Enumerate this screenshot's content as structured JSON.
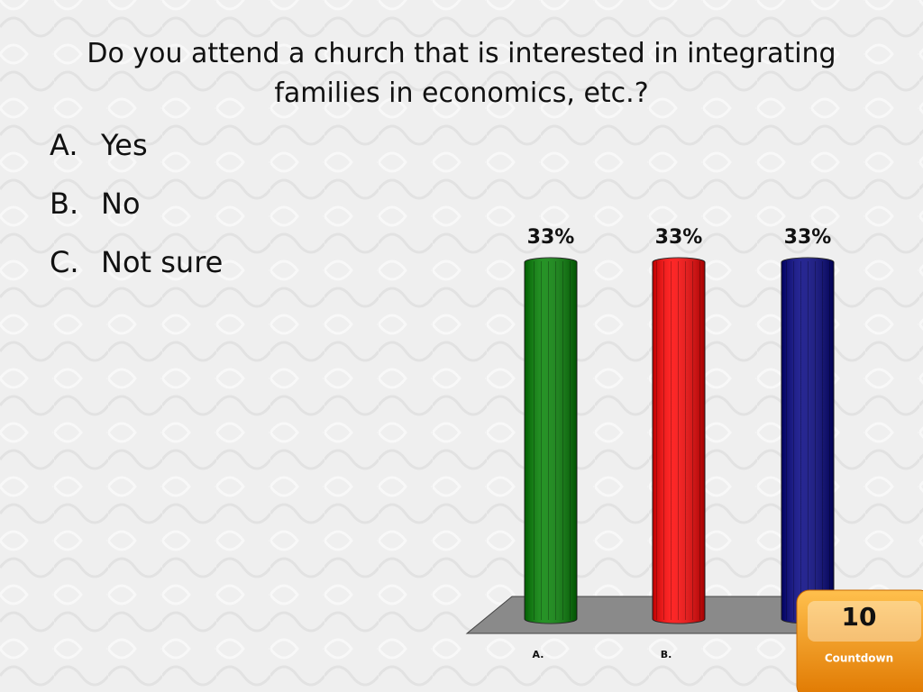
{
  "title": "Do you attend a church that is interested in integrating families in economics, etc.?",
  "options": [
    {
      "letter": "A.",
      "text": "Yes"
    },
    {
      "letter": "B.",
      "text": "No"
    },
    {
      "letter": "C.",
      "text": "Not sure"
    }
  ],
  "chart_data": {
    "type": "bar",
    "categories": [
      "A.",
      "B.",
      null
    ],
    "values": [
      33,
      33,
      33
    ],
    "value_labels": [
      "33%",
      "33%",
      "33%"
    ],
    "colors": [
      "#008000",
      "#ff0000",
      "#000080"
    ]
  },
  "countdown": {
    "number": "10",
    "label": "Countdown"
  }
}
